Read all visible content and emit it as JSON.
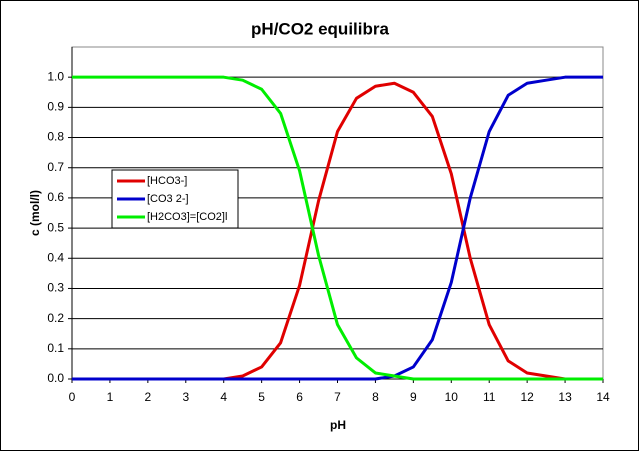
{
  "chart_data": {
    "type": "line",
    "title": "pH/CO2 equilibra",
    "x_label": "pH",
    "y_label": "c (mol/l)",
    "x": [
      0,
      0.5,
      1,
      1.5,
      2,
      2.5,
      3,
      3.5,
      4,
      4.5,
      5,
      5.5,
      6,
      6.5,
      7,
      7.5,
      8,
      8.5,
      9,
      9.5,
      10,
      10.5,
      11,
      11.5,
      12,
      12.5,
      13,
      13.5,
      14
    ],
    "series": [
      {
        "name": "[HCO3-]",
        "color": "#e00000",
        "values": [
          0,
          0,
          0,
          0,
          0,
          0,
          0,
          0,
          0,
          0.01,
          0.04,
          0.12,
          0.31,
          0.59,
          0.82,
          0.93,
          0.97,
          0.98,
          0.95,
          0.87,
          0.68,
          0.4,
          0.18,
          0.06,
          0.02,
          0.01,
          0,
          0,
          0
        ]
      },
      {
        "name": "[CO3 2-]",
        "color": "#0000cc",
        "values": [
          0,
          0,
          0,
          0,
          0,
          0,
          0,
          0,
          0,
          0,
          0,
          0,
          0,
          0,
          0,
          0,
          0,
          0.01,
          0.04,
          0.13,
          0.32,
          0.6,
          0.82,
          0.94,
          0.98,
          0.99,
          1,
          1,
          1
        ]
      },
      {
        "name": "[H2CO3]=[CO2]l",
        "color": "#00ee00",
        "values": [
          1,
          1,
          1,
          1,
          1,
          1,
          1,
          1,
          1,
          0.99,
          0.96,
          0.88,
          0.69,
          0.41,
          0.18,
          0.07,
          0.02,
          0.01,
          0,
          0,
          0,
          0,
          0,
          0,
          0,
          0,
          0,
          0,
          0
        ]
      }
    ],
    "xlim": [
      0,
      14
    ],
    "xticks": [
      0,
      1,
      2,
      3,
      4,
      5,
      6,
      7,
      8,
      9,
      10,
      11,
      12,
      13,
      14
    ],
    "ylim": [
      0,
      1.1
    ],
    "yticks": [
      {
        "value": 0,
        "label": "0.0"
      },
      0.1,
      0.2,
      0.3,
      0.4,
      0.5,
      0.6,
      0.7,
      0.8,
      0.9,
      {
        "value": 1,
        "label": "1.0"
      }
    ],
    "grid": true,
    "legend": "left"
  }
}
